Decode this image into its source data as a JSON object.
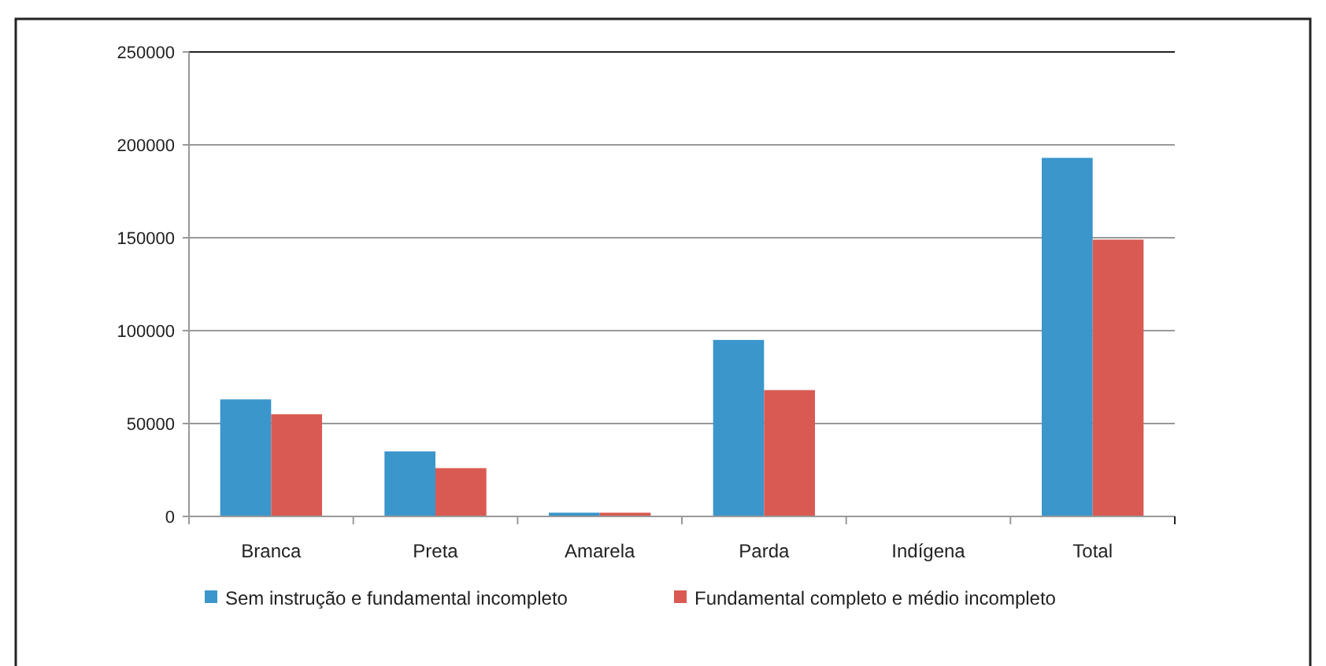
{
  "chart_data": {
    "type": "bar",
    "categories": [
      "Branca",
      "Preta",
      "Amarela",
      "Parda",
      "Indígena",
      "Total"
    ],
    "series": [
      {
        "name": "Sem instrução e fundamental incompleto",
        "color": "#3a96cb",
        "values": [
          63000,
          35000,
          2000,
          95000,
          0,
          193000
        ]
      },
      {
        "name": "Fundamental completo e médio incompleto",
        "color": "#d95a52",
        "values": [
          55000,
          26000,
          2000,
          68000,
          0,
          149000
        ]
      }
    ],
    "ylim": [
      0,
      250000
    ],
    "yticks": [
      0,
      50000,
      100000,
      150000,
      200000,
      250000
    ],
    "grid": "y",
    "legend": "bottom"
  }
}
